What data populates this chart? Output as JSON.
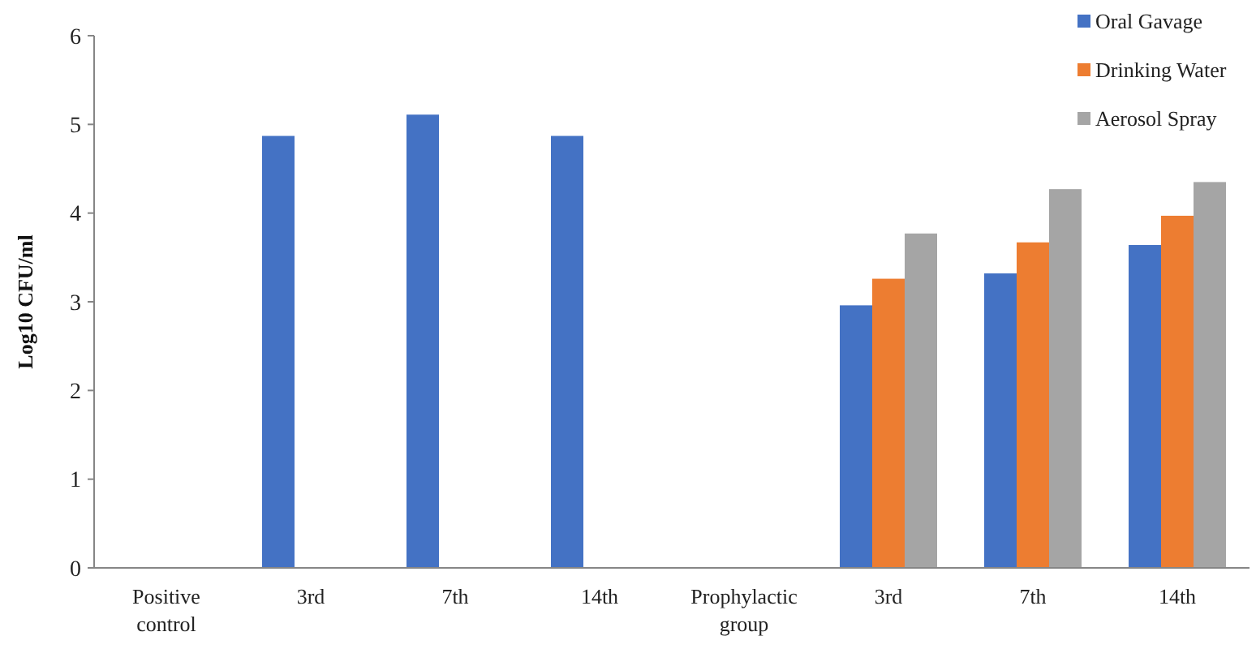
{
  "chart_data": {
    "type": "bar",
    "ylabel": "Log10 CFU/ml",
    "categories": [
      "Positive control",
      "3rd",
      "7th",
      "14th",
      "Prophylactic group",
      "3rd",
      "7th",
      "14th"
    ],
    "series": [
      {
        "name": "Oral Gavage",
        "color": "#4472c4",
        "values": [
          null,
          4.87,
          5.11,
          4.87,
          null,
          2.96,
          3.32,
          3.64
        ]
      },
      {
        "name": "Drinking Water",
        "color": "#ed7d31",
        "values": [
          null,
          null,
          null,
          null,
          null,
          3.26,
          3.67,
          3.97
        ]
      },
      {
        "name": "Aerosol Spray",
        "color": "#a5a5a5",
        "values": [
          null,
          null,
          null,
          null,
          null,
          3.77,
          4.27,
          4.35
        ]
      }
    ],
    "ylim": [
      0,
      6
    ],
    "yticks": [
      0,
      1,
      2,
      3,
      4,
      5,
      6
    ],
    "grid": false,
    "legend": "top right"
  }
}
